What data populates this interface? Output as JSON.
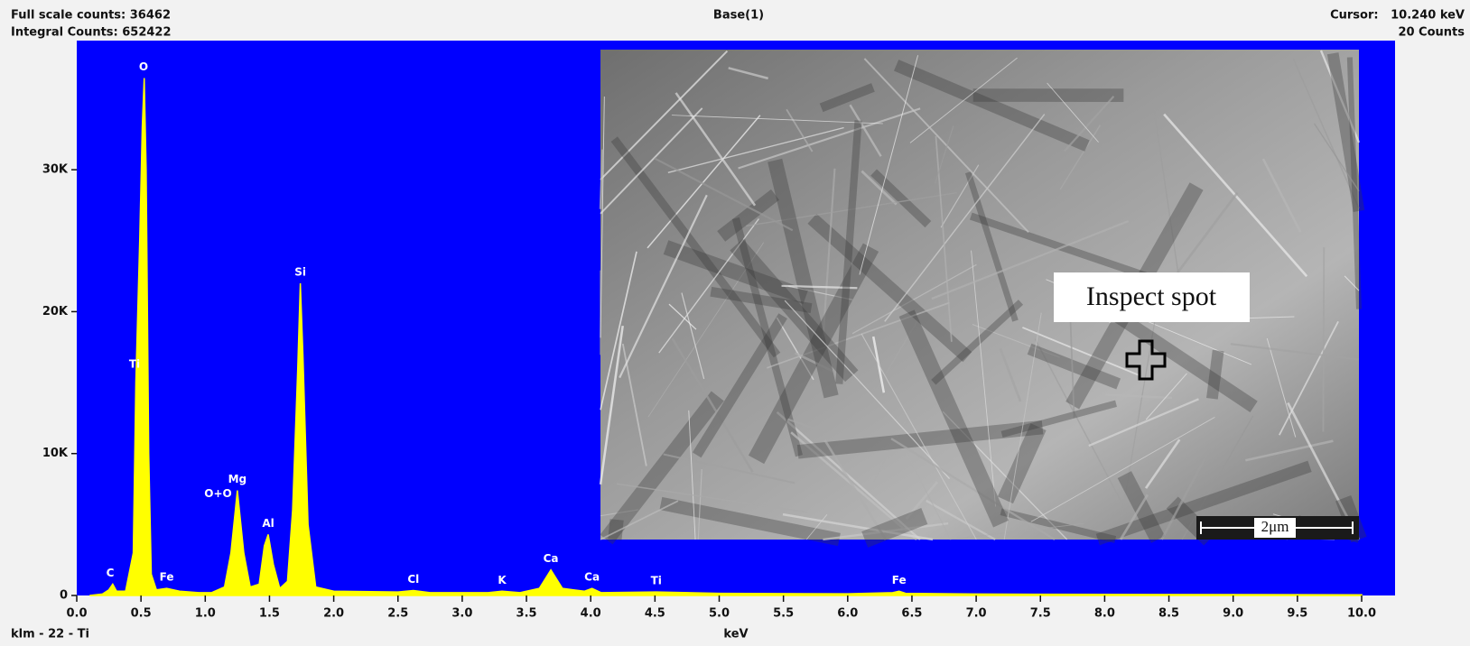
{
  "header": {
    "full_scale": "Full scale counts: 36462",
    "integral": "Integral Counts: 652422",
    "title": "Base(1)",
    "cursor": "Cursor:   10.240 keV",
    "cursor_counts": "20 Counts",
    "footer_left": "klm - 22 - Ti"
  },
  "chart_data": {
    "type": "area",
    "x_label": "keV",
    "color": "#ffff00",
    "background": "#0000ff",
    "x": [
      0.1,
      0.2,
      0.25,
      0.28,
      0.31,
      0.38,
      0.44,
      0.46,
      0.49,
      0.51,
      0.525,
      0.54,
      0.56,
      0.58,
      0.62,
      0.7,
      0.8,
      0.95,
      1.05,
      1.15,
      1.2,
      1.25,
      1.3,
      1.35,
      1.42,
      1.46,
      1.49,
      1.53,
      1.58,
      1.64,
      1.68,
      1.72,
      1.74,
      1.76,
      1.8,
      1.86,
      2.0,
      2.5,
      2.62,
      2.75,
      3.2,
      3.31,
      3.45,
      3.6,
      3.69,
      3.78,
      3.95,
      4.01,
      4.08,
      4.51,
      5.0,
      6.0,
      6.35,
      6.4,
      6.45,
      7.0,
      8.0,
      10.0
    ],
    "values": [
      0,
      100,
      400,
      800,
      300,
      300,
      3000,
      15000,
      25000,
      33000,
      36462,
      30000,
      10000,
      1500,
      400,
      500,
      300,
      200,
      200,
      600,
      3000,
      7400,
      3000,
      600,
      800,
      3500,
      4300,
      2200,
      500,
      1000,
      6000,
      16000,
      22000,
      17000,
      5000,
      600,
      300,
      250,
      350,
      200,
      200,
      300,
      200,
      500,
      1800,
      500,
      300,
      500,
      200,
      250,
      150,
      120,
      200,
      300,
      150,
      100,
      80,
      50
    ],
    "xlim": [
      0,
      10.26
    ],
    "ylim": [
      0,
      39100
    ],
    "xticks": [
      {
        "value": 0,
        "label": "0.0"
      },
      0.5,
      {
        "value": 1,
        "label": "1.0"
      },
      1.5,
      {
        "value": 2,
        "label": "2.0"
      },
      2.5,
      {
        "value": 3,
        "label": "3.0"
      },
      3.5,
      {
        "value": 4,
        "label": "4.0"
      },
      4.5,
      {
        "value": 5,
        "label": "5.0"
      },
      5.5,
      {
        "value": 6,
        "label": "6.0"
      },
      6.5,
      {
        "value": 7,
        "label": "7.0"
      },
      7.5,
      {
        "value": 8,
        "label": "8.0"
      },
      8.5,
      {
        "value": 9,
        "label": "9.0"
      },
      9.5,
      {
        "value": 10,
        "label": "10.0"
      }
    ],
    "yticks": [
      0,
      {
        "value": 10000,
        "label": "10K"
      },
      {
        "value": 20000,
        "label": "20K"
      },
      {
        "value": 30000,
        "label": "30K"
      }
    ],
    "peak_labels": [
      {
        "text": "C",
        "x": 0.26,
        "y": 800
      },
      {
        "text": "O",
        "x": 0.52,
        "y": 36462
      },
      {
        "text": "Ti",
        "x": 0.45,
        "y": 15500
      },
      {
        "text": "Fe",
        "x": 0.7,
        "y": 500
      },
      {
        "text": "O+O",
        "x": 1.1,
        "y": 6400
      },
      {
        "text": "Mg",
        "x": 1.25,
        "y": 7400
      },
      {
        "text": "Al",
        "x": 1.49,
        "y": 4300
      },
      {
        "text": "Si",
        "x": 1.74,
        "y": 22000
      },
      {
        "text": "Cl",
        "x": 2.62,
        "y": 350
      },
      {
        "text": "K",
        "x": 3.31,
        "y": 300
      },
      {
        "text": "Ca",
        "x": 3.69,
        "y": 1800
      },
      {
        "text": "Ca",
        "x": 4.01,
        "y": 500
      },
      {
        "text": "Ti",
        "x": 4.51,
        "y": 250
      },
      {
        "text": "Fe",
        "x": 6.4,
        "y": 300
      }
    ]
  },
  "inset": {
    "label": "Inspect spot",
    "scale_bar": "2μm"
  }
}
